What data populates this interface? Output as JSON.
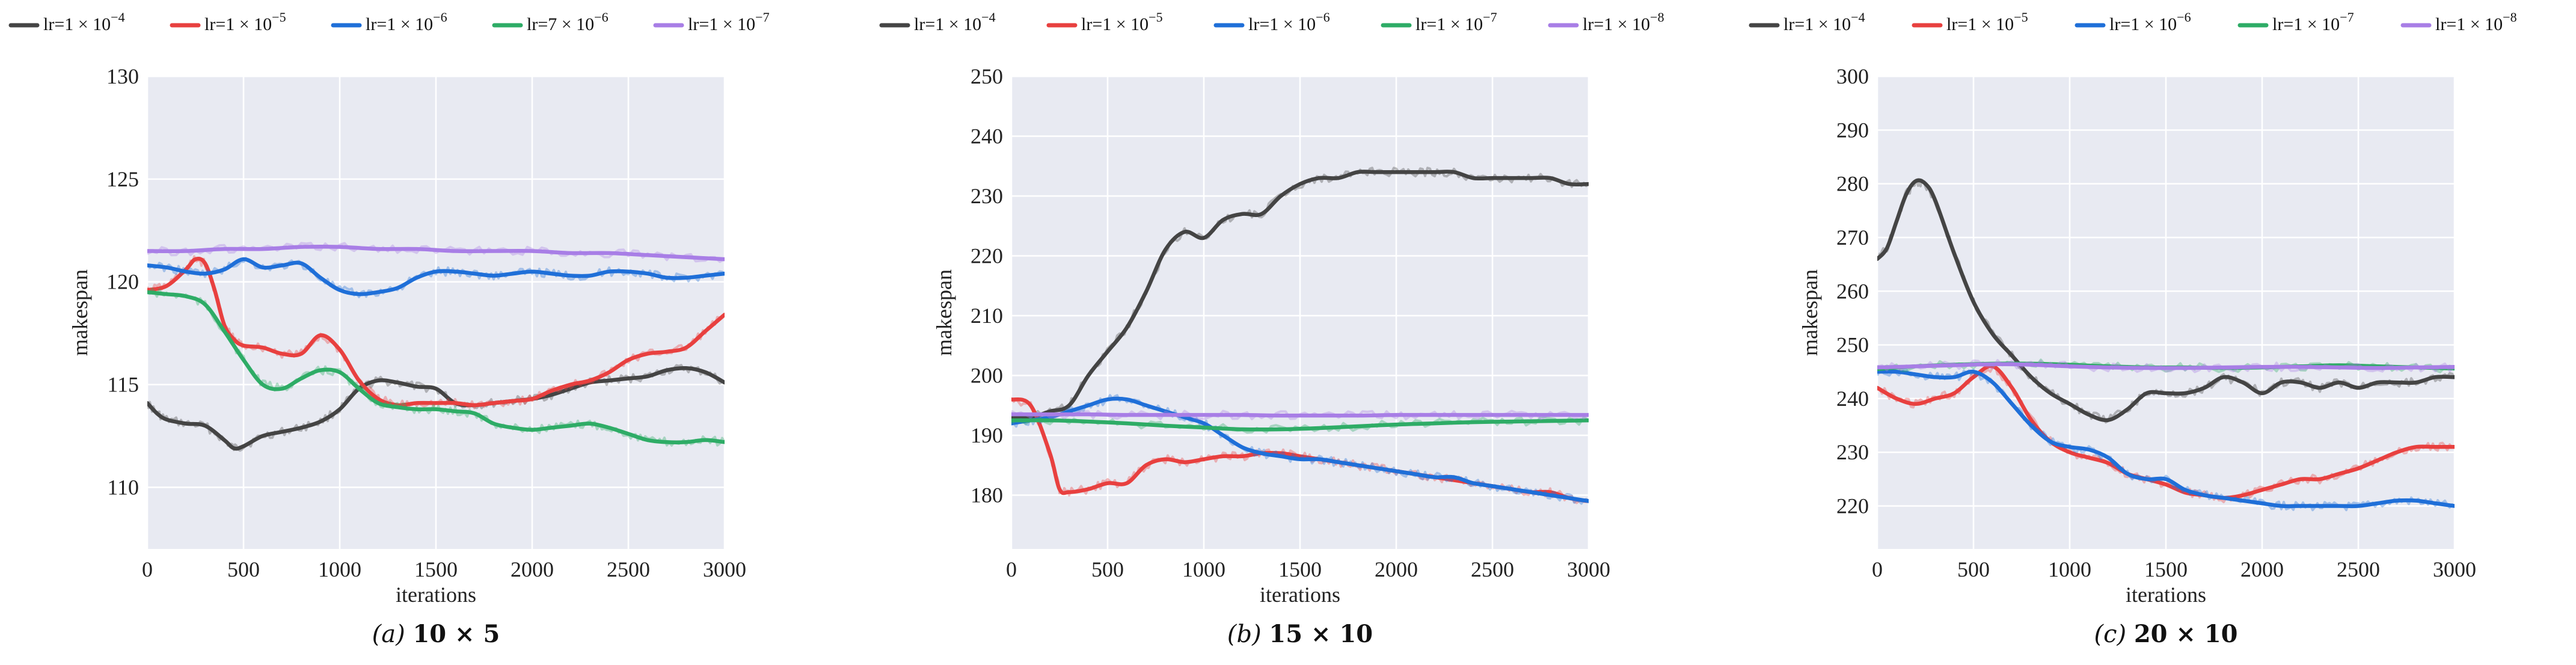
{
  "figure": {
    "background": "#ffffff",
    "plot_background": "#e8eaf2",
    "grid_color": "#ffffff"
  },
  "chart_data": [
    {
      "type": "line",
      "caption": "(a) 10 × 5",
      "caption_prefix": "(a)",
      "caption_size": "10 × 5",
      "xlabel": "iterations",
      "ylabel": "makespan",
      "xlim": [
        0,
        3000
      ],
      "ylim": [
        107,
        130
      ],
      "xticks": [
        0,
        500,
        1000,
        1500,
        2000,
        2500,
        3000
      ],
      "yticks": [
        110,
        115,
        120,
        125,
        130
      ],
      "legend_position": "top",
      "series": [
        {
          "name": "lr=1 × 10^-4",
          "label": "lr=1 × 10",
          "exponent": "−4",
          "color": "#444444",
          "x": [
            0,
            50,
            100,
            200,
            300,
            400,
            450,
            500,
            600,
            700,
            800,
            900,
            1000,
            1100,
            1200,
            1300,
            1400,
            1500,
            1600,
            1700,
            1800,
            1900,
            2000,
            2100,
            2200,
            2300,
            2400,
            2500,
            2600,
            2700,
            2800,
            2900,
            3000
          ],
          "y": [
            114.1,
            113.6,
            113.3,
            113.1,
            113.0,
            112.3,
            111.9,
            112.0,
            112.5,
            112.7,
            112.9,
            113.2,
            113.8,
            114.8,
            115.2,
            115.1,
            114.9,
            114.8,
            114.1,
            114.0,
            114.1,
            114.2,
            114.3,
            114.5,
            114.8,
            115.1,
            115.2,
            115.3,
            115.4,
            115.7,
            115.8,
            115.6,
            115.1
          ]
        },
        {
          "name": "lr=1 × 10^-5",
          "label": "lr=1 × 10",
          "exponent": "−5",
          "color": "#e8403f",
          "x": [
            0,
            100,
            200,
            250,
            300,
            350,
            400,
            450,
            500,
            600,
            700,
            800,
            900,
            1000,
            1100,
            1200,
            1300,
            1400,
            1500,
            1600,
            1700,
            1800,
            1900,
            2000,
            2100,
            2200,
            2300,
            2400,
            2500,
            2600,
            2700,
            2800,
            2900,
            3000
          ],
          "y": [
            119.6,
            119.8,
            120.6,
            121.1,
            120.9,
            119.6,
            117.9,
            117.2,
            116.9,
            116.8,
            116.5,
            116.5,
            117.4,
            116.7,
            115.2,
            114.3,
            114.0,
            114.1,
            114.1,
            114.1,
            114.0,
            114.1,
            114.2,
            114.3,
            114.7,
            115.0,
            115.2,
            115.6,
            116.2,
            116.5,
            116.6,
            116.8,
            117.6,
            118.4
          ]
        },
        {
          "name": "lr=1 × 10^-6",
          "label": "lr=1 × 10",
          "exponent": "−6",
          "color": "#1f6fd8",
          "x": [
            0,
            100,
            200,
            300,
            400,
            500,
            600,
            700,
            800,
            900,
            1000,
            1100,
            1200,
            1300,
            1400,
            1500,
            1600,
            1700,
            1800,
            1900,
            2000,
            2100,
            2200,
            2300,
            2400,
            2500,
            2600,
            2700,
            2800,
            2900,
            3000
          ],
          "y": [
            120.8,
            120.7,
            120.5,
            120.4,
            120.6,
            121.1,
            120.7,
            120.8,
            120.9,
            120.2,
            119.6,
            119.4,
            119.5,
            119.7,
            120.2,
            120.5,
            120.5,
            120.4,
            120.3,
            120.4,
            120.5,
            120.4,
            120.3,
            120.3,
            120.5,
            120.5,
            120.4,
            120.2,
            120.2,
            120.3,
            120.4
          ]
        },
        {
          "name": "lr=7 × 10^-6",
          "label": "lr=7 × 10",
          "exponent": "−6",
          "color": "#2eac66",
          "x": [
            0,
            100,
            200,
            300,
            400,
            500,
            600,
            700,
            800,
            900,
            1000,
            1100,
            1200,
            1300,
            1400,
            1500,
            1600,
            1700,
            1800,
            1900,
            2000,
            2100,
            2200,
            2300,
            2400,
            2500,
            2600,
            2700,
            2800,
            2900,
            3000
          ],
          "y": [
            119.5,
            119.4,
            119.3,
            118.9,
            117.6,
            116.2,
            115.0,
            114.8,
            115.3,
            115.7,
            115.6,
            114.8,
            114.1,
            113.9,
            113.8,
            113.8,
            113.7,
            113.6,
            113.1,
            112.9,
            112.8,
            112.9,
            113.0,
            113.1,
            112.9,
            112.6,
            112.3,
            112.2,
            112.2,
            112.3,
            112.2
          ]
        },
        {
          "name": "lr=1 × 10^-7",
          "label": "lr=1 × 10",
          "exponent": "−7",
          "color": "#a87ee6",
          "x": [
            0,
            200,
            400,
            600,
            800,
            1000,
            1200,
            1400,
            1600,
            1800,
            2000,
            2200,
            2400,
            2600,
            2800,
            3000
          ],
          "y": [
            121.5,
            121.5,
            121.6,
            121.6,
            121.7,
            121.7,
            121.6,
            121.6,
            121.5,
            121.5,
            121.5,
            121.4,
            121.4,
            121.3,
            121.2,
            121.1
          ]
        }
      ]
    },
    {
      "type": "line",
      "caption": "(b) 15 × 10",
      "caption_prefix": "(b)",
      "caption_size": "15 × 10",
      "xlabel": "iterations",
      "ylabel": "makespan",
      "xlim": [
        0,
        3000
      ],
      "ylim": [
        171,
        250
      ],
      "xticks": [
        0,
        500,
        1000,
        1500,
        2000,
        2500,
        3000
      ],
      "yticks": [
        180,
        190,
        200,
        210,
        220,
        230,
        240,
        250
      ],
      "legend_position": "top",
      "series": [
        {
          "name": "lr=1 × 10^-4",
          "label": "lr=1 × 10",
          "exponent": "−4",
          "color": "#444444",
          "x": [
            0,
            100,
            200,
            300,
            400,
            500,
            600,
            700,
            800,
            900,
            1000,
            1100,
            1200,
            1300,
            1400,
            1500,
            1600,
            1700,
            1800,
            1900,
            2000,
            2100,
            2200,
            2300,
            2400,
            2500,
            2600,
            2700,
            2800,
            2900,
            3000
          ],
          "y": [
            193,
            193,
            194,
            195,
            200,
            204,
            208,
            214,
            221,
            224,
            223,
            226,
            227,
            227,
            230,
            232,
            233,
            233,
            234,
            234,
            234,
            234,
            234,
            234,
            233,
            233,
            233,
            233,
            233,
            232,
            232
          ]
        },
        {
          "name": "lr=1 × 10^-5",
          "label": "lr=1 × 10",
          "exponent": "−5",
          "color": "#e8403f",
          "x": [
            0,
            100,
            200,
            250,
            300,
            400,
            500,
            600,
            700,
            800,
            900,
            1000,
            1100,
            1200,
            1300,
            1400,
            1500,
            1600,
            1700,
            1800,
            1900,
            2000,
            2100,
            2200,
            2300,
            2400,
            2500,
            2600,
            2700,
            2800,
            2900,
            3000
          ],
          "y": [
            196,
            195,
            187,
            181,
            180.5,
            181,
            182,
            182,
            185,
            186,
            185.5,
            186,
            186.5,
            186.5,
            187,
            187,
            186.5,
            186,
            185.5,
            185,
            184.5,
            184,
            183.5,
            183,
            182.5,
            182,
            181.5,
            181,
            180.5,
            180.5,
            179.5,
            179
          ]
        },
        {
          "name": "lr=1 × 10^-6",
          "label": "lr=1 × 10",
          "exponent": "−6",
          "color": "#1f6fd8",
          "x": [
            0,
            100,
            200,
            300,
            400,
            500,
            600,
            700,
            800,
            900,
            1000,
            1100,
            1200,
            1300,
            1400,
            1500,
            1600,
            1700,
            1800,
            1900,
            2000,
            2100,
            2200,
            2300,
            2400,
            2500,
            2600,
            2700,
            2800,
            2900,
            3000
          ],
          "y": [
            192,
            192.5,
            193,
            194,
            195,
            196,
            196,
            195,
            194,
            193,
            192,
            190,
            188,
            187,
            186.5,
            186,
            186,
            185.5,
            185,
            184.5,
            184,
            183.5,
            183,
            183,
            182,
            181.5,
            181,
            180.5,
            180,
            179.5,
            179
          ]
        },
        {
          "name": "lr=1 × 10^-7",
          "label": "lr=1 × 10",
          "exponent": "−7",
          "color": "#2eac66",
          "x": [
            0,
            200,
            400,
            600,
            800,
            1000,
            1200,
            1400,
            1600,
            1800,
            2000,
            2200,
            2400,
            2600,
            2800,
            3000
          ],
          "y": [
            192.5,
            192.5,
            192.3,
            192.0,
            191.6,
            191.3,
            191.0,
            191.0,
            191.2,
            191.5,
            191.8,
            192.0,
            192.2,
            192.3,
            192.4,
            192.5
          ]
        },
        {
          "name": "lr=1 × 10^-8",
          "label": "lr=1 × 10",
          "exponent": "−8",
          "color": "#a87ee6",
          "x": [
            0,
            200,
            400,
            600,
            800,
            1000,
            1200,
            1400,
            1600,
            1800,
            2000,
            2200,
            2400,
            2600,
            2800,
            3000
          ],
          "y": [
            193.5,
            193.5,
            193.5,
            193.4,
            193.4,
            193.4,
            193.4,
            193.3,
            193.3,
            193.3,
            193.4,
            193.4,
            193.4,
            193.4,
            193.4,
            193.4
          ]
        }
      ]
    },
    {
      "type": "line",
      "caption": "(c) 20 × 10",
      "caption_prefix": "(c)",
      "caption_size": "20 × 10",
      "xlabel": "iterations",
      "ylabel": "makespan",
      "xlim": [
        0,
        3000
      ],
      "ylim": [
        212,
        300
      ],
      "xticks": [
        0,
        500,
        1000,
        1500,
        2000,
        2500,
        3000
      ],
      "yticks": [
        220,
        230,
        240,
        250,
        260,
        270,
        280,
        290,
        300
      ],
      "legend_position": "top",
      "series": [
        {
          "name": "lr=1 × 10^-4",
          "label": "lr=1 × 10",
          "exponent": "−4",
          "color": "#444444",
          "x": [
            0,
            50,
            100,
            150,
            200,
            250,
            300,
            400,
            500,
            600,
            700,
            800,
            900,
            1000,
            1100,
            1200,
            1300,
            1400,
            1500,
            1600,
            1700,
            1800,
            1900,
            2000,
            2100,
            2200,
            2300,
            2400,
            2500,
            2600,
            2700,
            2800,
            2900,
            3000
          ],
          "y": [
            266,
            268,
            273,
            278,
            280.5,
            280,
            277,
            267,
            258,
            252,
            248,
            244,
            241,
            239,
            237,
            236,
            238,
            241,
            241,
            241,
            242,
            244,
            243,
            241,
            243,
            243,
            242,
            243,
            242,
            243,
            243,
            243,
            244,
            244
          ]
        },
        {
          "name": "lr=1 × 10^-5",
          "label": "lr=1 × 10",
          "exponent": "−5",
          "color": "#e8403f",
          "x": [
            0,
            100,
            200,
            300,
            400,
            500,
            600,
            700,
            800,
            900,
            1000,
            1100,
            1200,
            1300,
            1400,
            1500,
            1600,
            1700,
            1800,
            1900,
            2000,
            2100,
            2200,
            2300,
            2400,
            2500,
            2600,
            2700,
            2800,
            2900,
            3000
          ],
          "y": [
            242,
            240,
            239,
            240,
            241,
            244,
            246,
            242,
            236,
            232,
            230,
            229,
            228,
            226,
            225,
            224,
            222.5,
            222,
            221.5,
            222,
            223,
            224,
            225,
            225,
            226,
            227,
            228.5,
            230,
            231,
            231,
            231
          ]
        },
        {
          "name": "lr=1 × 10^-6",
          "label": "lr=1 × 10",
          "exponent": "−6",
          "color": "#1f6fd8",
          "x": [
            0,
            100,
            200,
            300,
            400,
            500,
            600,
            700,
            800,
            900,
            1000,
            1100,
            1200,
            1300,
            1400,
            1500,
            1600,
            1700,
            1800,
            1900,
            2000,
            2100,
            2200,
            2300,
            2400,
            2500,
            2600,
            2700,
            2800,
            2900,
            3000
          ],
          "y": [
            245,
            245,
            244.5,
            244,
            244,
            245,
            243,
            239,
            235,
            232,
            231,
            230.5,
            229,
            226,
            225,
            225,
            223,
            222,
            221.5,
            221,
            220.5,
            220,
            220,
            220,
            220,
            220,
            220.5,
            221,
            221,
            220.5,
            220
          ]
        },
        {
          "name": "lr=1 × 10^-7",
          "label": "lr=1 × 10",
          "exponent": "−7",
          "color": "#2eac66",
          "x": [
            0,
            200,
            400,
            600,
            800,
            1000,
            1200,
            1400,
            1600,
            1800,
            2000,
            2200,
            2400,
            2600,
            2800,
            3000
          ],
          "y": [
            245.5,
            246.0,
            246.3,
            246.5,
            246.5,
            246.3,
            246.0,
            245.8,
            245.8,
            245.7,
            245.8,
            246.0,
            246.2,
            246.0,
            245.8,
            245.6
          ]
        },
        {
          "name": "lr=1 × 10^-8",
          "label": "lr=1 × 10",
          "exponent": "−8",
          "color": "#a87ee6",
          "x": [
            0,
            200,
            400,
            600,
            800,
            1000,
            1200,
            1400,
            1600,
            1800,
            2000,
            2200,
            2400,
            2600,
            2800,
            3000
          ],
          "y": [
            245.8,
            246.0,
            246.2,
            246.4,
            246.3,
            246.0,
            245.8,
            245.7,
            245.7,
            245.8,
            245.9,
            245.9,
            245.8,
            245.7,
            245.8,
            245.9
          ]
        }
      ]
    }
  ]
}
